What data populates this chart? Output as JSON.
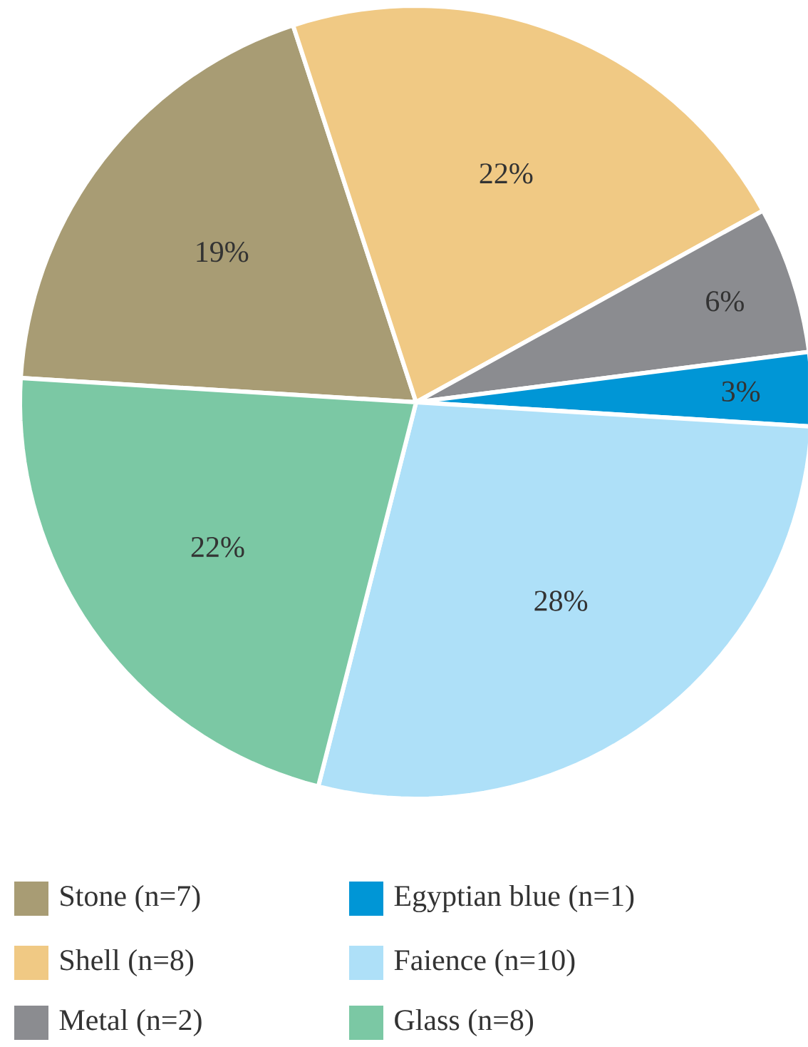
{
  "chart_data": {
    "type": "pie",
    "categories": [
      "Stone (n=7)",
      "Shell (n=8)",
      "Metal (n=2)",
      "Egyptian blue (n=1)",
      "Faience (n=10)",
      "Glass (n=8)"
    ],
    "values": [
      19,
      22,
      6,
      3,
      28,
      22
    ],
    "colors": [
      "#a89c74",
      "#f0c984",
      "#8b8c90",
      "#0096d6",
      "#aee0f8",
      "#7bc8a4"
    ],
    "value_labels": [
      "19%",
      "22%",
      "6%",
      "3%",
      "28%",
      "22%"
    ],
    "legend": "bottom"
  }
}
